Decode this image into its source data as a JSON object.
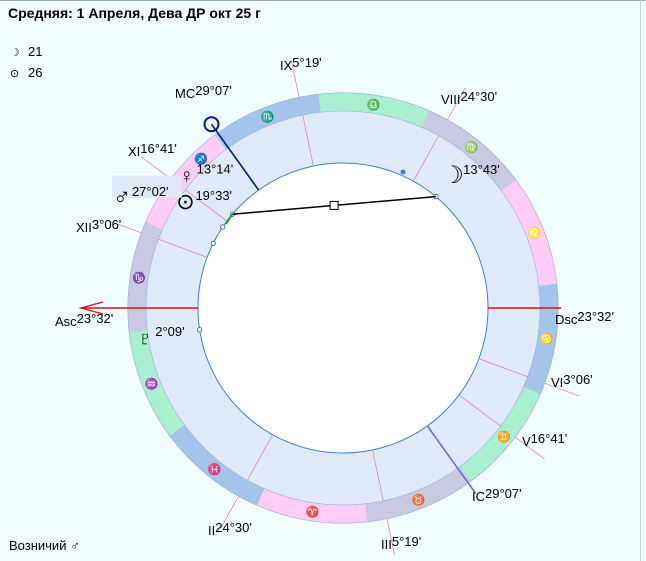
{
  "header": {
    "title": "Средняя: 1 Апреля, Дева ДР окт 25 г"
  },
  "stats": [
    {
      "icon": "moon-icon",
      "glyph": "☽",
      "value": "21"
    },
    {
      "icon": "sun-icon",
      "glyph": "⊙",
      "value": "26"
    }
  ],
  "footer": {
    "text": "Возничий ♂"
  },
  "colors": {
    "background": "#f0fcfe",
    "ring_fill": "#dfe9f7",
    "fire": "#ffccf6",
    "earth": "#c9c9e2",
    "air": "#a8f0d0",
    "water": "#a4c4ec",
    "house_line": "#e07aa0",
    "axis_asc": "#e01010",
    "axis_mc": "#001a80",
    "axis_ic": "#6a6ae0",
    "aspect": "#000000",
    "sign_glyph": "#1a1aa0"
  },
  "signs": [
    {
      "name": "Aries",
      "glyph": "♈",
      "element": "fire"
    },
    {
      "name": "Taurus",
      "glyph": "♉",
      "element": "earth"
    },
    {
      "name": "Gemini",
      "glyph": "♊",
      "element": "air"
    },
    {
      "name": "Cancer",
      "glyph": "♋",
      "element": "water"
    },
    {
      "name": "Leo",
      "glyph": "♌",
      "element": "fire"
    },
    {
      "name": "Virgo",
      "glyph": "♍",
      "element": "earth"
    },
    {
      "name": "Libra",
      "glyph": "♎",
      "element": "air"
    },
    {
      "name": "Scorpio",
      "glyph": "♏",
      "element": "water"
    },
    {
      "name": "Sagittarius",
      "glyph": "♐",
      "element": "fire"
    },
    {
      "name": "Capricorn",
      "glyph": "♑",
      "element": "earth"
    },
    {
      "name": "Aquarius",
      "glyph": "♒",
      "element": "air"
    },
    {
      "name": "Pisces",
      "glyph": "♓",
      "element": "water"
    }
  ],
  "houses": [
    {
      "numeral": "Asc",
      "sign": "Capricorn",
      "degree": "23°32'"
    },
    {
      "numeral": "II",
      "sign": "Pisces",
      "degree": "24°30'"
    },
    {
      "numeral": "III",
      "sign": "Taurus",
      "degree": "5°19'"
    },
    {
      "numeral": "IC",
      "sign": "Taurus",
      "degree": "29°07'"
    },
    {
      "numeral": "V",
      "sign": "Gemini",
      "degree": "16°41'"
    },
    {
      "numeral": "VI",
      "sign": "Cancer",
      "degree": "3°06'"
    },
    {
      "numeral": "Dsc",
      "sign": "Cancer",
      "degree": "23°32'"
    },
    {
      "numeral": "VIII",
      "sign": "Virgo",
      "degree": "24°30'"
    },
    {
      "numeral": "IX",
      "sign": "Scorpio",
      "degree": "5°19'"
    },
    {
      "numeral": "MC",
      "sign": "Scorpio",
      "degree": "29°07'"
    },
    {
      "numeral": "XI",
      "sign": "Sagittarius",
      "degree": "16°41'"
    },
    {
      "numeral": "XII",
      "sign": "Capricorn",
      "degree": "3°06'"
    }
  ],
  "planets": [
    {
      "name": "Moon",
      "glyph": "☽",
      "sign": "Virgo",
      "degree": "13°43'"
    },
    {
      "name": "Venus",
      "glyph": "♀",
      "sign": "Sagittarius",
      "degree": "13°14'"
    },
    {
      "name": "Sun",
      "glyph": "⊙",
      "sign": "Sagittarius",
      "degree": "19°33'"
    },
    {
      "name": "Mars",
      "glyph": "♂",
      "sign": "Sagittarius",
      "degree": "27°02'"
    },
    {
      "name": "Pluto",
      "glyph": "♇",
      "sign": "Aquarius",
      "degree": "2°09'"
    }
  ],
  "aspects": [
    {
      "from": "Moon",
      "to": "Venus",
      "type": "square",
      "color": "#000000"
    },
    {
      "from": "Venus",
      "to": "Sun",
      "type": "conjunction",
      "color": "#20a020"
    }
  ]
}
